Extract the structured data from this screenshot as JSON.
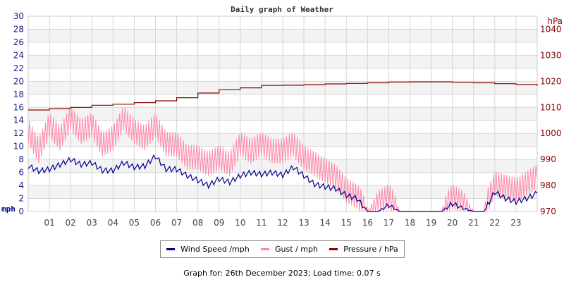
{
  "chart_data": {
    "type": "line",
    "title": "Daily graph of Weather",
    "ylabel_left": "mph",
    "ylabel_right": "hPa",
    "ylim_left": [
      0,
      30
    ],
    "ylim_right": [
      970,
      1045
    ],
    "xlim": [
      0,
      24
    ],
    "grid": true,
    "x_ticks": [
      "01",
      "02",
      "03",
      "04",
      "05",
      "06",
      "07",
      "08",
      "09",
      "10",
      "11",
      "12",
      "13",
      "14",
      "15",
      "16",
      "17",
      "18",
      "19",
      "20",
      "21",
      "22",
      "23"
    ],
    "y_ticks_left": [
      "0",
      "2",
      "4",
      "6",
      "8",
      "10",
      "12",
      "14",
      "16",
      "18",
      "20",
      "22",
      "24",
      "26",
      "28",
      "30"
    ],
    "y_ticks_right": [
      "970",
      "980",
      "990",
      "1000",
      "1010",
      "1020",
      "1030",
      "1040"
    ],
    "series": [
      {
        "name": "Wind Speed /mph",
        "color": "#00008b",
        "axis": "left",
        "x": [
          0,
          0.5,
          1,
          1.5,
          2,
          2.5,
          3,
          3.5,
          4,
          4.5,
          5,
          5.5,
          6,
          6.5,
          7,
          7.5,
          8,
          8.5,
          9,
          9.5,
          10,
          10.5,
          11,
          11.5,
          12,
          12.5,
          13,
          13.5,
          14,
          14.5,
          15,
          15.5,
          16,
          16.5,
          17,
          17.5,
          18,
          18.5,
          19,
          19.5,
          20,
          20.5,
          21,
          21.5,
          22,
          22.5,
          23,
          23.5,
          24
        ],
        "values": [
          7,
          6.2,
          6.5,
          7.2,
          8,
          7.2,
          7.5,
          6.3,
          6.3,
          7.5,
          6.8,
          7,
          8.5,
          6.5,
          6.5,
          5.5,
          4.8,
          4,
          5,
          4.5,
          5.5,
          6,
          5.7,
          6,
          5.6,
          6.8,
          5.5,
          4.2,
          3.8,
          3.5,
          2.5,
          2,
          0,
          0,
          1,
          0,
          0,
          0,
          0,
          0,
          1.2,
          0.5,
          0,
          0,
          3,
          2,
          1.5,
          2,
          2.8
        ]
      },
      {
        "name": "Gust / mph",
        "color": "#ff88aa",
        "axis": "left",
        "x": [
          0,
          0.5,
          1,
          1.5,
          2,
          2.5,
          3,
          3.5,
          4,
          4.5,
          5,
          5.5,
          6,
          6.5,
          7,
          7.5,
          8,
          8.5,
          9,
          9.5,
          10,
          10.5,
          11,
          11.5,
          12,
          12.5,
          13,
          13.5,
          14,
          14.5,
          15,
          15.5,
          16,
          16.5,
          17,
          17.5,
          18,
          18.5,
          19,
          19.5,
          20,
          20.5,
          21,
          21.5,
          22,
          22.5,
          23,
          23.5,
          24
        ],
        "values": [
          12,
          9,
          13,
          11,
          14,
          12,
          13,
          10,
          11,
          14,
          12,
          11,
          13,
          10,
          10,
          8,
          8,
          7,
          8,
          7,
          10,
          9,
          10,
          9,
          9,
          10,
          8,
          7,
          6,
          5,
          3,
          2,
          0,
          1,
          2,
          0,
          0,
          0,
          0,
          0,
          2,
          1,
          0,
          0,
          4,
          3.5,
          3,
          4,
          5
        ]
      },
      {
        "name": "Pressure / hPa",
        "color": "#8b0000",
        "axis": "right",
        "x": [
          0,
          1,
          2,
          3,
          4,
          5,
          6,
          7,
          8,
          9,
          10,
          11,
          12,
          13,
          14,
          15,
          16,
          17,
          18,
          19,
          20,
          21,
          22,
          23,
          24
        ],
        "values": [
          1009,
          1009.5,
          1010,
          1010.8,
          1011.2,
          1011.8,
          1012.5,
          1013.7,
          1015.5,
          1016.8,
          1017.5,
          1018.4,
          1018.5,
          1018.7,
          1019,
          1019.2,
          1019.4,
          1019.7,
          1019.8,
          1019.8,
          1019.6,
          1019.4,
          1019.1,
          1018.8,
          1018.3
        ]
      }
    ]
  },
  "legend": {
    "wind": "Wind Speed /mph",
    "gust": "Gust / mph",
    "pressure": "Pressure / hPa"
  },
  "footer": "Graph for: 26th December 2023; Load time: 0.07 s"
}
